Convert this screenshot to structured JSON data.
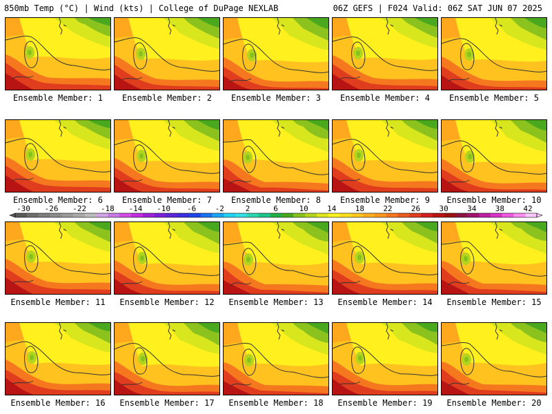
{
  "header": {
    "left": "850mb Temp (°C) | Wind (kts) | College of DuPage NEXLAB",
    "right": "06Z GEFS | F024 Valid: 06Z SAT JUN 07 2025"
  },
  "members": [
    "Ensemble Member: 1",
    "Ensemble Member: 2",
    "Ensemble Member: 3",
    "Ensemble Member: 4",
    "Ensemble Member: 5",
    "Ensemble Member: 6",
    "Ensemble Member: 7",
    "Ensemble Member: 8",
    "Ensemble Member: 9",
    "Ensemble Member: 10",
    "Ensemble Member: 11",
    "Ensemble Member: 12",
    "Ensemble Member: 13",
    "Ensemble Member: 14",
    "Ensemble Member: 15",
    "Ensemble Member: 16",
    "Ensemble Member: 17",
    "Ensemble Member: 18",
    "Ensemble Member: 19",
    "Ensemble Member: 20"
  ],
  "colorbar": {
    "tick_labels": [
      "-30",
      "-26",
      "-22",
      "-18",
      "-14",
      "-10",
      "-6",
      "-2",
      "2",
      "6",
      "10",
      "14",
      "18",
      "22",
      "26",
      "30",
      "34",
      "38",
      "42"
    ],
    "colors": [
      "#5a5a5a",
      "#6e6e6e",
      "#7d7d7d",
      "#8c8c8c",
      "#9b9b9b",
      "#aaaaaa",
      "#bdbdbd",
      "#d2a5e6",
      "#c97ae6",
      "#d24be6",
      "#c32fe0",
      "#9d22d9",
      "#7a1fd9",
      "#5a26d6",
      "#3a2ee0",
      "#1e46e8",
      "#1a74f0",
      "#1aa6f5",
      "#22d2f5",
      "#33e0e6",
      "#2ed6b0",
      "#1ec48a",
      "#22b046",
      "#4aa81e",
      "#86c21e",
      "#b4d41e",
      "#dfe81e",
      "#fff51e",
      "#ffe01e",
      "#ffc81e",
      "#ffae1e",
      "#ff961e",
      "#f5781e",
      "#eb5a1e",
      "#e03c1e",
      "#d21e1e",
      "#b81414",
      "#a01010",
      "#8c1440",
      "#a0146e",
      "#be1ea0",
      "#dc32c8",
      "#f05ae0",
      "#ff8cf0",
      "#ffc8ff"
    ]
  }
}
